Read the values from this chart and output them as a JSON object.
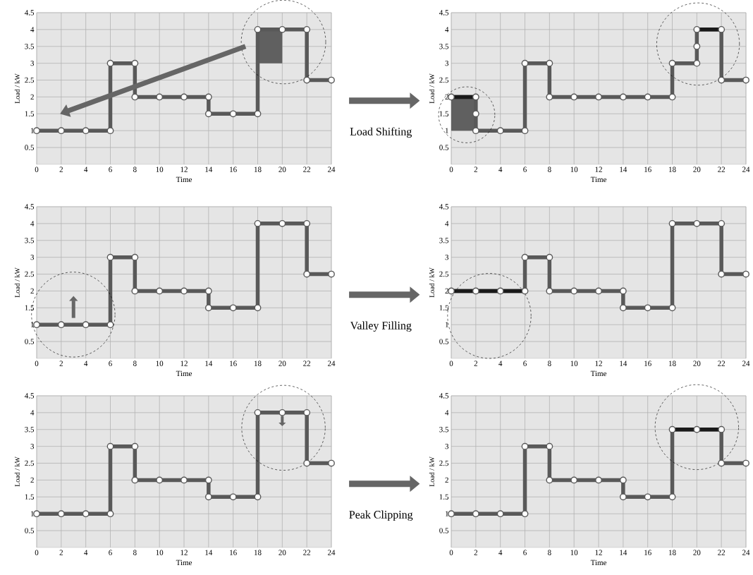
{
  "chart_data": [
    {
      "type": "line",
      "xlabel": "Time",
      "ylabel": "Load / kW",
      "xlim": [
        0,
        24
      ],
      "ylim": [
        0,
        4.5
      ],
      "xticks": [
        0,
        2,
        4,
        6,
        8,
        10,
        12,
        14,
        16,
        18,
        20,
        22,
        24
      ],
      "yticks": [
        0.5,
        1,
        1.5,
        2,
        2.5,
        3,
        3.5,
        4,
        4.5
      ],
      "grid": true,
      "marker": "circle",
      "annotations": [
        "Load Shifting"
      ],
      "series": [
        {
          "color": "#595959",
          "x": [
            0,
            2,
            4,
            6,
            6,
            8,
            8,
            10,
            12,
            14,
            14,
            16,
            18,
            18,
            20,
            22,
            22,
            24
          ],
          "values": [
            1,
            1,
            1,
            1,
            3,
            3,
            2,
            2,
            2,
            2,
            1.5,
            1.5,
            1.5,
            4,
            4,
            4,
            2.5,
            2.5
          ]
        }
      ]
    },
    {
      "type": "line",
      "xlabel": "Time",
      "ylabel": "Load / kW",
      "xlim": [
        0,
        24
      ],
      "ylim": [
        0,
        4.5
      ],
      "xticks": [
        0,
        2,
        4,
        6,
        8,
        10,
        12,
        14,
        16,
        18,
        20,
        22,
        24
      ],
      "yticks": [
        0.5,
        1,
        1.5,
        2,
        2.5,
        3,
        3.5,
        4,
        4.5
      ],
      "grid": true,
      "marker": "circle",
      "series": [
        {
          "color": "#595959",
          "x": [
            0,
            2,
            2,
            2,
            4,
            6,
            6,
            8,
            8,
            10,
            12,
            14,
            16,
            18,
            18,
            20,
            20,
            20,
            22,
            22,
            24
          ],
          "values": [
            2,
            2,
            1.5,
            1,
            1,
            1,
            3,
            3,
            2,
            2,
            2,
            2,
            2,
            2,
            3,
            3,
            3.5,
            4,
            4,
            2.5,
            2.5
          ]
        },
        {
          "color": "#1a1a1a",
          "marker": "none",
          "x": [
            0,
            2
          ],
          "values": [
            2,
            2
          ]
        },
        {
          "color": "#1a1a1a",
          "marker": "none",
          "x": [
            20,
            22
          ],
          "values": [
            4,
            4
          ]
        }
      ]
    },
    {
      "type": "line",
      "xlabel": "Time",
      "ylabel": "Load / kW",
      "xlim": [
        0,
        24
      ],
      "ylim": [
        0,
        4.5
      ],
      "xticks": [
        0,
        2,
        4,
        6,
        8,
        10,
        12,
        14,
        16,
        18,
        20,
        22,
        24
      ],
      "yticks": [
        0.5,
        1,
        1.5,
        2,
        2.5,
        3,
        3.5,
        4,
        4.5
      ],
      "grid": true,
      "marker": "circle",
      "annotations": [
        "Valley Filling"
      ],
      "series": [
        {
          "color": "#595959",
          "x": [
            0,
            2,
            4,
            6,
            6,
            8,
            8,
            10,
            12,
            14,
            14,
            16,
            18,
            18,
            20,
            22,
            22,
            24
          ],
          "values": [
            1,
            1,
            1,
            1,
            3,
            3,
            2,
            2,
            2,
            2,
            1.5,
            1.5,
            1.5,
            4,
            4,
            4,
            2.5,
            2.5
          ]
        }
      ]
    },
    {
      "type": "line",
      "xlabel": "Time",
      "ylabel": "Load / kW",
      "xlim": [
        0,
        24
      ],
      "ylim": [
        0,
        4.5
      ],
      "xticks": [
        0,
        2,
        4,
        6,
        8,
        10,
        12,
        14,
        16,
        18,
        20,
        22,
        24
      ],
      "yticks": [
        0.5,
        1,
        1.5,
        2,
        2.5,
        3,
        3.5,
        4,
        4.5
      ],
      "grid": true,
      "marker": "circle",
      "series": [
        {
          "color": "#595959",
          "x": [
            0,
            2,
            4,
            6,
            6,
            8,
            8,
            10,
            12,
            14,
            14,
            16,
            18,
            18,
            20,
            22,
            22,
            24
          ],
          "values": [
            2,
            2,
            2,
            2,
            3,
            3,
            2,
            2,
            2,
            2,
            1.5,
            1.5,
            1.5,
            4,
            4,
            4,
            2.5,
            2.5
          ]
        },
        {
          "color": "#1a1a1a",
          "marker": "none",
          "x": [
            0,
            6
          ],
          "values": [
            2,
            2
          ]
        }
      ]
    },
    {
      "type": "line",
      "xlabel": "Time",
      "ylabel": "Load / kW",
      "xlim": [
        0,
        24
      ],
      "ylim": [
        0,
        4.5
      ],
      "xticks": [
        0,
        2,
        4,
        6,
        8,
        10,
        12,
        14,
        16,
        18,
        20,
        22,
        24
      ],
      "yticks": [
        0.5,
        1,
        1.5,
        2,
        2.5,
        3,
        3.5,
        4,
        4.5
      ],
      "grid": true,
      "marker": "circle",
      "annotations": [
        "Peak Clipping"
      ],
      "series": [
        {
          "color": "#595959",
          "x": [
            0,
            2,
            4,
            6,
            6,
            8,
            8,
            10,
            12,
            14,
            14,
            16,
            18,
            18,
            20,
            22,
            22,
            24
          ],
          "values": [
            1,
            1,
            1,
            1,
            3,
            3,
            2,
            2,
            2,
            2,
            1.5,
            1.5,
            1.5,
            4,
            4,
            4,
            2.5,
            2.5
          ]
        }
      ]
    },
    {
      "type": "line",
      "xlabel": "Time",
      "ylabel": "Load / kW",
      "xlim": [
        0,
        24
      ],
      "ylim": [
        0,
        4.5
      ],
      "xticks": [
        0,
        2,
        4,
        6,
        8,
        10,
        12,
        14,
        16,
        18,
        20,
        22,
        24
      ],
      "yticks": [
        0.5,
        1,
        1.5,
        2,
        2.5,
        3,
        3.5,
        4,
        4.5
      ],
      "grid": true,
      "marker": "circle",
      "series": [
        {
          "color": "#595959",
          "x": [
            0,
            2,
            4,
            6,
            6,
            8,
            8,
            10,
            12,
            14,
            14,
            16,
            18,
            18,
            20,
            22,
            22,
            24
          ],
          "values": [
            1,
            1,
            1,
            1,
            3,
            3,
            2,
            2,
            2,
            2,
            1.5,
            1.5,
            1.5,
            3.5,
            3.5,
            3.5,
            2.5,
            2.5
          ]
        },
        {
          "color": "#1a1a1a",
          "marker": "none",
          "x": [
            18,
            22
          ],
          "values": [
            3.5,
            3.5
          ]
        }
      ]
    }
  ]
}
